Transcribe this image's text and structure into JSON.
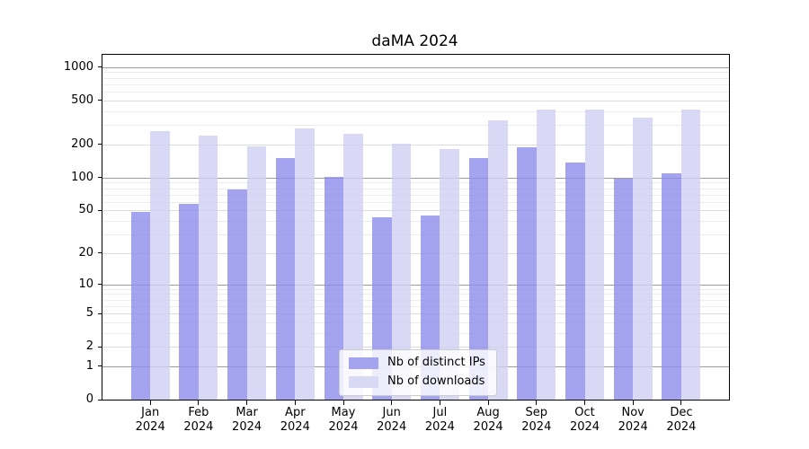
{
  "title": "daMA 2024",
  "chart_data": {
    "type": "bar",
    "title": "daMA 2024",
    "categories": [
      "Jan 2024",
      "Feb 2024",
      "Mar 2024",
      "Apr 2024",
      "May 2024",
      "Jun 2024",
      "Jul 2024",
      "Aug 2024",
      "Sep 2024",
      "Oct 2024",
      "Nov 2024",
      "Dec 2024"
    ],
    "series": [
      {
        "name": "Nb of distinct IPs",
        "color": "#a3a3f0",
        "fill": "rgba(140,140,236,0.8)",
        "values": [
          48,
          57,
          78,
          150,
          101,
          43,
          45,
          150,
          190,
          138,
          97,
          110
        ]
      },
      {
        "name": "Nb of downloads",
        "color": "#d9d9f6",
        "fill": "rgba(208,208,244,0.8)",
        "values": [
          265,
          240,
          193,
          280,
          252,
          203,
          182,
          330,
          415,
          415,
          352,
          417
        ]
      }
    ],
    "xlabel": "",
    "ylabel": "",
    "yscale": "log1p",
    "ylim": [
      0,
      1300
    ],
    "yticks": [
      0,
      1,
      2,
      5,
      10,
      20,
      50,
      100,
      200,
      500,
      1000
    ],
    "yticks_major": [
      1,
      10,
      100,
      1000
    ],
    "yticks_minor": [
      3,
      4,
      6,
      7,
      8,
      9,
      30,
      40,
      60,
      70,
      80,
      90,
      300,
      400,
      600,
      700,
      800,
      900
    ],
    "grid": true,
    "legend_loc": "lower center"
  },
  "colors": {
    "grid_major": "#9b9b9b",
    "grid_mid": "#dcdcdc",
    "grid_minor": "#ececec",
    "axis": "#000000",
    "legend_border": "#cccccc",
    "legend_bg": "rgba(255,255,255,0.8)"
  }
}
